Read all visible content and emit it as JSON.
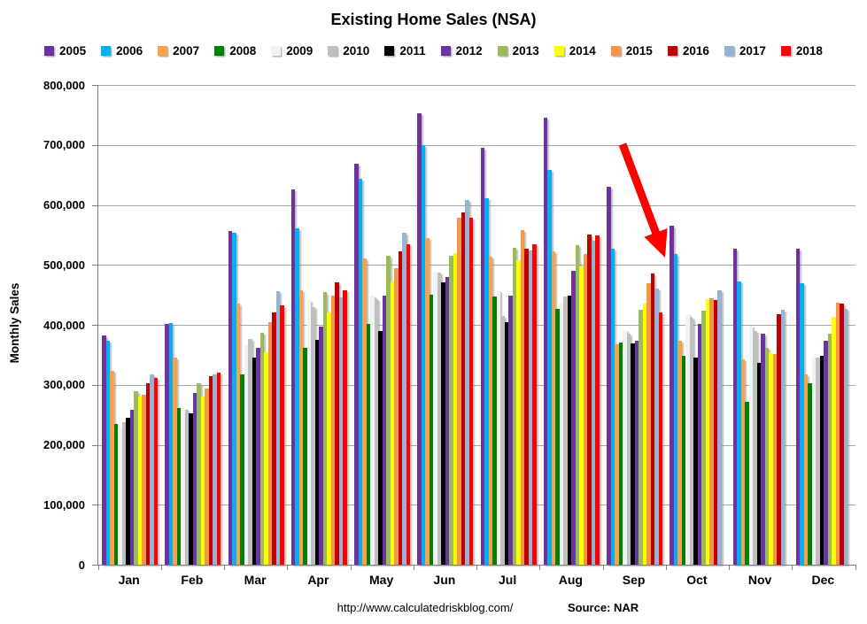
{
  "title": "Existing Home Sales (NSA)",
  "y_axis": {
    "label": "Monthly Sales",
    "min": 0,
    "max": 800000,
    "step": 100000,
    "tick_labels": [
      "800,000",
      "700,000",
      "600,000",
      "500,000",
      "400,000",
      "300,000",
      "200,000",
      "100,000",
      "0"
    ]
  },
  "footer": {
    "url": "http://www.calculatedriskblog.com/",
    "source": "Source: NAR"
  },
  "annotation": {
    "shape": "red-arrow",
    "color": "#FF0000",
    "points_at": "September 2017/2018 bars"
  },
  "chart_data": {
    "type": "bar",
    "title": "Existing Home Sales (NSA)",
    "xlabel": "",
    "ylabel": "Monthly Sales",
    "ylim": [
      0,
      800000
    ],
    "grid": true,
    "legend_position": "top",
    "categories": [
      "Jan",
      "Feb",
      "Mar",
      "Apr",
      "May",
      "Jun",
      "Jul",
      "Aug",
      "Sep",
      "Oct",
      "Nov",
      "Dec"
    ],
    "series": [
      {
        "name": "2005",
        "color": "#7030A0",
        "values": [
          382000,
          402000,
          556000,
          626000,
          669000,
          753000,
          695000,
          745000,
          630000,
          566000,
          527000,
          527000
        ]
      },
      {
        "name": "2006",
        "color": "#00B0F0",
        "values": [
          374000,
          403000,
          554000,
          561000,
          644000,
          700000,
          611000,
          658000,
          527000,
          518000,
          473000,
          470000
        ]
      },
      {
        "name": "2007",
        "color": "#FAA24B",
        "values": [
          324000,
          346000,
          436000,
          458000,
          510000,
          545000,
          513000,
          522000,
          368000,
          373000,
          342000,
          318000
        ]
      },
      {
        "name": "2008",
        "color": "#008000",
        "values": [
          234000,
          262000,
          317000,
          362000,
          402000,
          450000,
          447000,
          427000,
          371000,
          348000,
          272000,
          303000
        ]
      },
      {
        "name": "2009",
        "color": "#F2F2F2",
        "values": [
          231000,
          258000,
          367000,
          442000,
          449000,
          489000,
          458000,
          435000,
          391000,
          417000,
          398000,
          347000
        ]
      },
      {
        "name": "2010",
        "color": "#BFBFBF",
        "values": [
          237000,
          258000,
          377000,
          430000,
          443000,
          487000,
          415000,
          447000,
          385000,
          412000,
          390000,
          346000
        ]
      },
      {
        "name": "2011",
        "color": "#000000",
        "values": [
          245000,
          252000,
          346000,
          375000,
          390000,
          471000,
          405000,
          449000,
          369000,
          345000,
          336000,
          348000
        ]
      },
      {
        "name": "2012",
        "color": "#6A35A3",
        "values": [
          258000,
          287000,
          361000,
          397000,
          449000,
          479000,
          449000,
          490000,
          373000,
          401000,
          385000,
          373000
        ]
      },
      {
        "name": "2013",
        "color": "#9BBB59",
        "values": [
          290000,
          302000,
          387000,
          454000,
          515000,
          515000,
          528000,
          533000,
          425000,
          423000,
          361000,
          385000
        ]
      },
      {
        "name": "2014",
        "color": "#FFFF00",
        "values": [
          281000,
          281000,
          355000,
          421000,
          473000,
          520000,
          508000,
          498000,
          435000,
          443000,
          353000,
          413000
        ]
      },
      {
        "name": "2015",
        "color": "#F79646",
        "values": [
          283000,
          294000,
          405000,
          448000,
          495000,
          578000,
          558000,
          518000,
          470000,
          445000,
          352000,
          437000
        ]
      },
      {
        "name": "2016",
        "color": "#C00000",
        "values": [
          302000,
          314000,
          420000,
          471000,
          523000,
          588000,
          527000,
          550000,
          486000,
          442000,
          417000,
          435000
        ]
      },
      {
        "name": "2017",
        "color": "#95B3D7",
        "values": [
          317000,
          317000,
          456000,
          446000,
          554000,
          608000,
          524000,
          540000,
          460000,
          458000,
          425000,
          427000
        ]
      },
      {
        "name": "2018",
        "color": "#FF0000",
        "values": [
          311000,
          320000,
          433000,
          458000,
          535000,
          578000,
          535000,
          549000,
          420000,
          null,
          null,
          null
        ]
      }
    ]
  }
}
